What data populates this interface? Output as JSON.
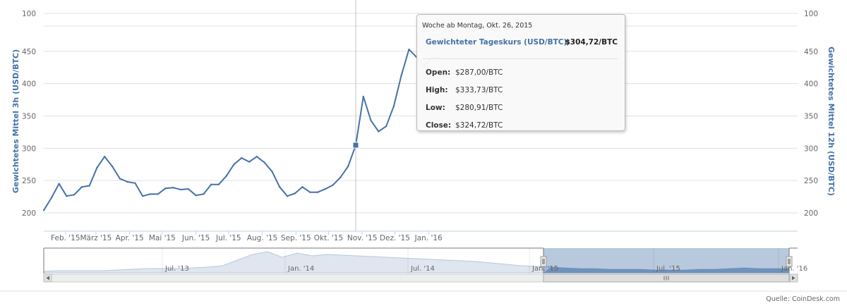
{
  "chart_data": {
    "type": "line",
    "title": "",
    "y_axis_left": {
      "label": "Gewichtetes Mittel 3h (USD/BTC)",
      "ticks": [
        100,
        200,
        250,
        300,
        350,
        400,
        450
      ]
    },
    "y_axis_right": {
      "label": "Gewichtetes Mittel 12h (USD/BTC)",
      "ticks": [
        100,
        200,
        250,
        300,
        350,
        400,
        450
      ]
    },
    "x_axis": {
      "ticks": [
        "Feb. '15",
        "März '15",
        "Apr. '15",
        "Mai '15",
        "Jun. '15",
        "Jul. '15",
        "Aug. '15",
        "Sep. '15",
        "Okt. '15",
        "Nov. '15",
        "Dez. '15",
        "Jan. '16"
      ]
    },
    "series": [
      {
        "color": "#4572a7",
        "x": [
          "2015-01-12",
          "2015-01-19",
          "2015-01-26",
          "2015-02-02",
          "2015-02-09",
          "2015-02-16",
          "2015-02-23",
          "2015-03-02",
          "2015-03-09",
          "2015-03-16",
          "2015-03-23",
          "2015-03-30",
          "2015-04-06",
          "2015-04-13",
          "2015-04-20",
          "2015-04-27",
          "2015-05-04",
          "2015-05-11",
          "2015-05-18",
          "2015-05-25",
          "2015-06-01",
          "2015-06-08",
          "2015-06-15",
          "2015-06-22",
          "2015-06-29",
          "2015-07-06",
          "2015-07-13",
          "2015-07-20",
          "2015-07-27",
          "2015-08-03",
          "2015-08-10",
          "2015-08-17",
          "2015-08-24",
          "2015-08-31",
          "2015-09-07",
          "2015-09-14",
          "2015-09-21",
          "2015-09-28",
          "2015-10-05",
          "2015-10-12",
          "2015-10-19",
          "2015-10-26",
          "2015-11-02",
          "2015-11-09",
          "2015-11-16",
          "2015-11-23",
          "2015-11-30",
          "2015-12-07",
          "2015-12-14",
          "2015-12-21",
          "2015-12-28",
          "2016-01-04",
          "2016-01-11"
        ],
        "values": [
          204,
          223,
          245,
          226,
          228,
          240,
          242,
          270,
          287,
          272,
          253,
          248,
          246,
          226,
          229,
          229,
          238,
          239,
          236,
          237,
          227,
          229,
          244,
          244,
          257,
          275,
          285,
          279,
          287,
          278,
          264,
          240,
          226,
          230,
          240,
          232,
          232,
          237,
          243,
          255,
          272,
          304.72,
          380,
          343,
          326,
          334,
          365,
          413,
          453,
          441,
          428,
          440,
          440
        ]
      }
    ],
    "tooltip": {
      "header": "Woche ab Montag, Okt. 26, 2015",
      "series_label": "Gewichteter Tageskurs (USD/BTC):",
      "series_value": "$304,72/BTC",
      "rows": [
        {
          "label": "Open:",
          "value": "$287,00/BTC"
        },
        {
          "label": "High:",
          "value": "$333,73/BTC"
        },
        {
          "label": "Low:",
          "value": "$280,91/BTC"
        },
        {
          "label": "Close:",
          "value": "$324,72/BTC"
        }
      ]
    },
    "navigator": {
      "labels": [
        "Jul. '13",
        "Jan. '14",
        "Jul. '14",
        "Jan. '15",
        "Jul. '15",
        "Jan. '16"
      ]
    },
    "source": "Quelle: CoinDesk.com",
    "grid": true,
    "legend": "none"
  },
  "navigator_series": [
    2,
    3,
    3,
    3,
    3,
    4,
    5,
    6,
    6,
    6,
    7,
    8,
    10,
    18,
    26,
    30,
    22,
    28,
    24,
    26,
    25,
    24,
    23,
    22,
    21,
    20,
    19,
    18,
    17,
    16,
    14,
    12,
    10,
    9,
    8,
    7,
    6,
    6,
    5,
    5,
    5,
    4,
    4,
    4,
    5,
    5,
    6,
    7,
    6,
    6,
    6
  ]
}
